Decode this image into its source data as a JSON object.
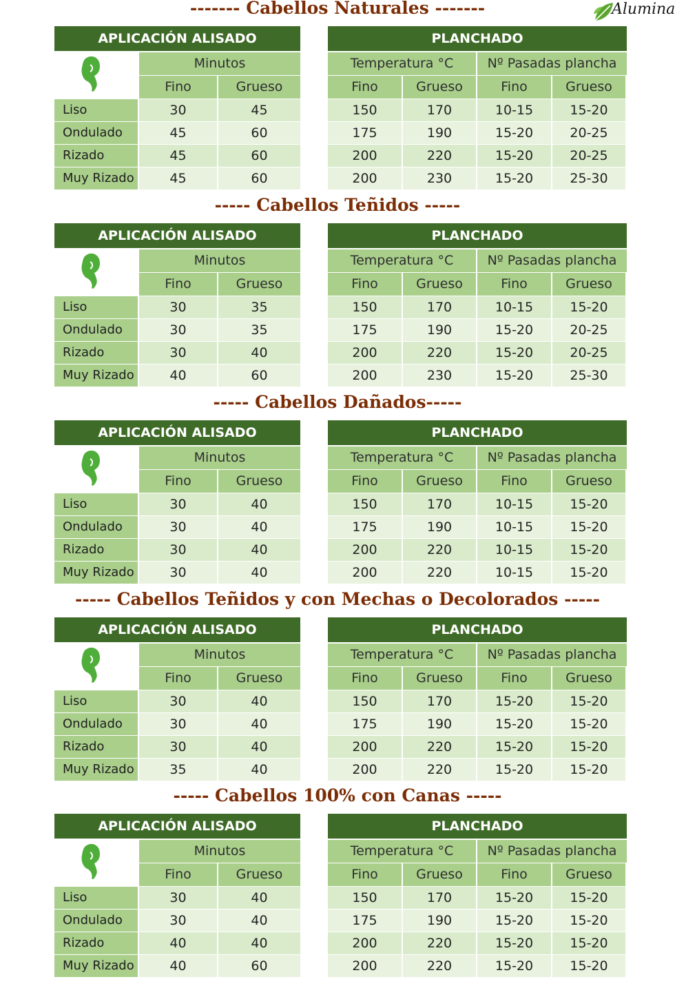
{
  "logo": {
    "text": "Aluminalia",
    "icon": "leaf-icon",
    "color": "#5aa52c"
  },
  "common": {
    "aplicacion": "APLICACIÓN ALISADO",
    "planchado": "PLANCHADO",
    "minutos": "Minutos",
    "temperatura": "Temperatura °C",
    "pasadas": "Nº Pasadas plancha",
    "fino": "Fino",
    "grueso": "Grueso",
    "rows": [
      "Liso",
      "Ondulado",
      "Rizado",
      "Muy Rizado"
    ],
    "icon": "head-silhouette-icon"
  },
  "sections": [
    {
      "title": "------- Cabellos Naturales -------",
      "rows": [
        [
          "30",
          "45",
          "150",
          "170",
          "10-15",
          "15-20"
        ],
        [
          "45",
          "60",
          "175",
          "190",
          "15-20",
          "20-25"
        ],
        [
          "45",
          "60",
          "200",
          "220",
          "15-20",
          "20-25"
        ],
        [
          "45",
          "60",
          "200",
          "230",
          "15-20",
          "25-30"
        ]
      ]
    },
    {
      "title": "----- Cabellos Teñidos -----",
      "rows": [
        [
          "30",
          "35",
          "150",
          "170",
          "10-15",
          "15-20"
        ],
        [
          "30",
          "35",
          "175",
          "190",
          "15-20",
          "20-25"
        ],
        [
          "30",
          "40",
          "200",
          "220",
          "15-20",
          "20-25"
        ],
        [
          "40",
          "60",
          "200",
          "230",
          "15-20",
          "25-30"
        ]
      ]
    },
    {
      "title": "----- Cabellos Dañados-----",
      "rows": [
        [
          "30",
          "40",
          "150",
          "170",
          "10-15",
          "15-20"
        ],
        [
          "30",
          "40",
          "175",
          "190",
          "10-15",
          "15-20"
        ],
        [
          "30",
          "40",
          "200",
          "220",
          "10-15",
          "15-20"
        ],
        [
          "30",
          "40",
          "200",
          "220",
          "10-15",
          "15-20"
        ]
      ]
    },
    {
      "title": "----- Cabellos Teñidos y con Mechas o Decolorados -----",
      "rows": [
        [
          "30",
          "40",
          "150",
          "170",
          "15-20",
          "15-20"
        ],
        [
          "30",
          "40",
          "175",
          "190",
          "15-20",
          "15-20"
        ],
        [
          "30",
          "40",
          "200",
          "220",
          "15-20",
          "15-20"
        ],
        [
          "35",
          "40",
          "200",
          "220",
          "15-20",
          "15-20"
        ]
      ]
    },
    {
      "title": "----- Cabellos 100% con Canas -----",
      "rows": [
        [
          "30",
          "40",
          "150",
          "170",
          "15-20",
          "15-20"
        ],
        [
          "30",
          "40",
          "175",
          "190",
          "15-20",
          "15-20"
        ],
        [
          "40",
          "40",
          "200",
          "220",
          "15-20",
          "15-20"
        ],
        [
          "40",
          "60",
          "200",
          "220",
          "15-20",
          "15-20"
        ]
      ]
    }
  ]
}
